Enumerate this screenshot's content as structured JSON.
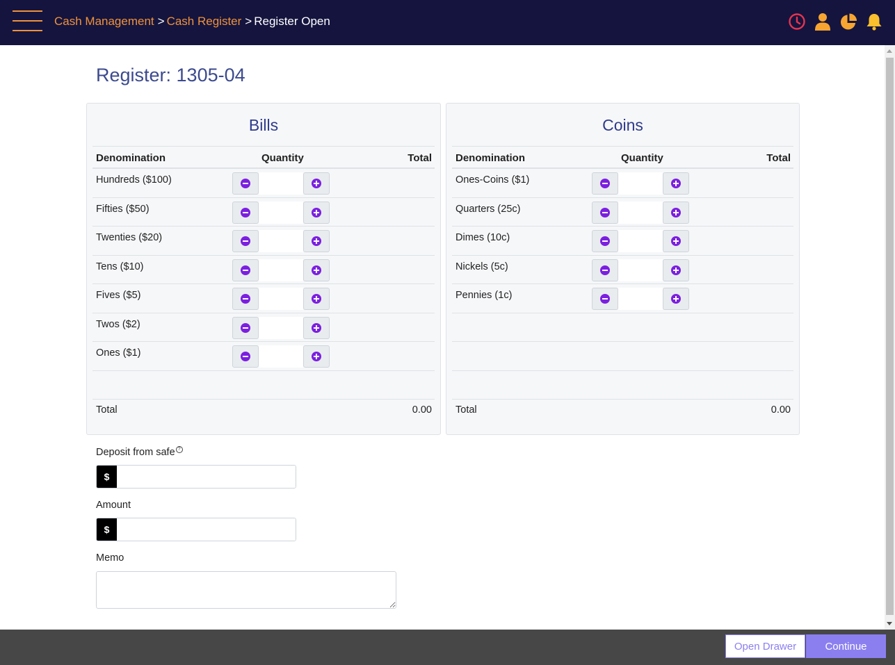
{
  "header": {
    "breadcrumb": [
      {
        "label": "Cash Management",
        "link": true
      },
      {
        "label": "Cash Register",
        "link": true
      },
      {
        "label": "Register Open",
        "link": false
      }
    ],
    "separator": ">",
    "icons": [
      "clock-icon",
      "user-icon",
      "pie-chart-icon",
      "bell-icon"
    ]
  },
  "page": {
    "title": "Register: 1305-04"
  },
  "bills": {
    "title": "Bills",
    "headers": {
      "denomination": "Denomination",
      "quantity": "Quantity",
      "total": "Total"
    },
    "rows": [
      {
        "label": "Hundreds ($100)",
        "qty": ""
      },
      {
        "label": "Fifties ($50)",
        "qty": ""
      },
      {
        "label": "Twenties ($20)",
        "qty": ""
      },
      {
        "label": "Tens ($10)",
        "qty": ""
      },
      {
        "label": "Fives ($5)",
        "qty": ""
      },
      {
        "label": "Twos ($2)",
        "qty": ""
      },
      {
        "label": "Ones ($1)",
        "qty": ""
      }
    ],
    "total_label": "Total",
    "total_value": "0.00"
  },
  "coins": {
    "title": "Coins",
    "headers": {
      "denomination": "Denomination",
      "quantity": "Quantity",
      "total": "Total"
    },
    "rows": [
      {
        "label": "Ones-Coins ($1)",
        "qty": ""
      },
      {
        "label": "Quarters (25c)",
        "qty": ""
      },
      {
        "label": "Dimes (10c)",
        "qty": ""
      },
      {
        "label": "Nickels (5c)",
        "qty": ""
      },
      {
        "label": "Pennies (1c)",
        "qty": ""
      }
    ],
    "total_label": "Total",
    "total_value": "0.00"
  },
  "form": {
    "deposit_label": "Deposit from safe",
    "help_glyph": "?",
    "currency_symbol": "$",
    "deposit_value": "",
    "amount_label": "Amount",
    "amount_value": "",
    "memo_label": "Memo",
    "memo_value": ""
  },
  "footer": {
    "open_drawer_label": "Open Drawer",
    "continue_label": "Continue"
  },
  "colors": {
    "header_bg": "#14143f",
    "accent_orange": "#f0923a",
    "stepper_purple": "#7b1fe0",
    "button_purple": "#8b7ff0",
    "footer_bg": "#474747"
  }
}
